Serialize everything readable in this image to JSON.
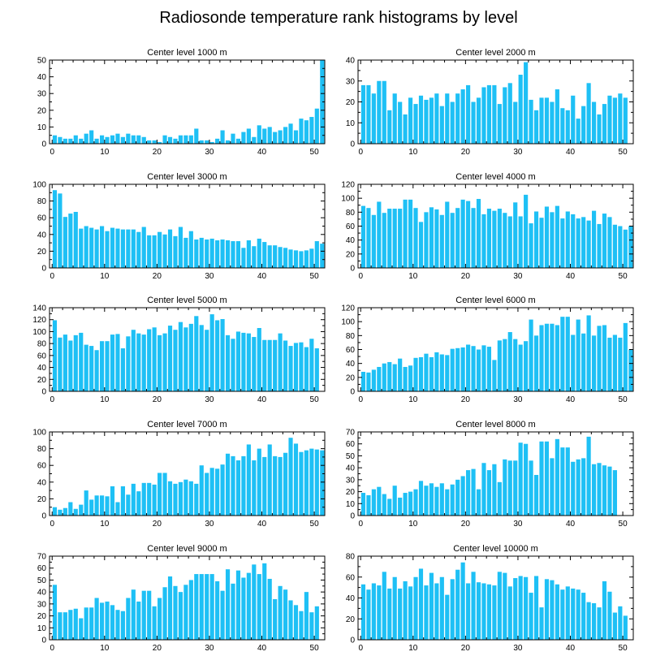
{
  "figure": {
    "title": "Radiosonde temperature rank histograms by level",
    "bar_color": "#1ec0f5"
  },
  "chart_data": [
    {
      "type": "bar",
      "title": "Center level 1000 m",
      "x_ticks": [
        0,
        10,
        20,
        30,
        40,
        50
      ],
      "xlim": [
        -0.5,
        52
      ],
      "y_ticks": [
        0,
        10,
        20,
        30,
        40,
        50
      ],
      "ylim": [
        0,
        50
      ],
      "values": [
        5,
        4,
        3,
        3,
        5,
        3,
        6,
        8,
        3,
        5,
        4,
        5,
        6,
        4,
        6,
        5,
        5,
        4,
        2,
        2,
        1,
        5,
        4,
        3,
        5,
        5,
        5,
        9,
        2,
        2,
        1,
        3,
        8,
        2,
        6,
        3,
        7,
        9,
        4,
        11,
        9,
        10,
        7,
        8,
        10,
        12,
        8,
        15,
        14,
        16,
        21,
        50
      ]
    },
    {
      "type": "bar",
      "title": "Center level 2000 m",
      "x_ticks": [
        0,
        10,
        20,
        30,
        40,
        50
      ],
      "xlim": [
        -0.5,
        52
      ],
      "y_ticks": [
        0,
        10,
        20,
        30,
        40
      ],
      "ylim": [
        0,
        40
      ],
      "values": [
        28,
        28,
        24,
        30,
        30,
        16,
        24,
        20,
        14,
        22,
        19,
        23,
        21,
        22,
        24,
        18,
        24,
        20,
        24,
        26,
        28,
        20,
        22,
        27,
        28,
        28,
        19,
        27,
        29,
        20,
        33,
        39,
        21,
        16,
        22,
        22,
        20,
        26,
        17,
        16,
        23,
        12,
        18,
        29,
        20,
        14,
        19,
        23,
        22,
        24,
        22
      ]
    },
    {
      "type": "bar",
      "title": "Center level 3000 m",
      "x_ticks": [
        0,
        10,
        20,
        30,
        40,
        50
      ],
      "xlim": [
        -0.5,
        52
      ],
      "y_ticks": [
        0,
        20,
        40,
        60,
        80,
        100
      ],
      "ylim": [
        0,
        100
      ],
      "values": [
        93,
        89,
        61,
        65,
        67,
        47,
        50,
        48,
        46,
        50,
        44,
        48,
        47,
        46,
        46,
        46,
        43,
        49,
        39,
        39,
        43,
        40,
        46,
        38,
        49,
        36,
        44,
        34,
        36,
        34,
        35,
        33,
        34,
        33,
        32,
        32,
        24,
        33,
        26,
        35,
        31,
        27,
        27,
        25,
        24,
        22,
        21,
        20,
        21,
        23,
        32,
        29
      ]
    },
    {
      "type": "bar",
      "title": "Center level 4000 m",
      "x_ticks": [
        0,
        10,
        20,
        30,
        40,
        50
      ],
      "xlim": [
        -0.5,
        52
      ],
      "y_ticks": [
        0,
        20,
        40,
        60,
        80,
        100,
        120
      ],
      "ylim": [
        0,
        120
      ],
      "values": [
        89,
        86,
        76,
        95,
        79,
        85,
        85,
        85,
        98,
        98,
        86,
        66,
        80,
        87,
        84,
        76,
        95,
        79,
        86,
        98,
        96,
        86,
        99,
        77,
        85,
        82,
        85,
        79,
        74,
        94,
        74,
        105,
        64,
        81,
        72,
        88,
        80,
        89,
        71,
        81,
        77,
        71,
        73,
        68,
        82,
        63,
        78,
        73,
        62,
        60,
        55,
        60
      ]
    },
    {
      "type": "bar",
      "title": "Center level 5000 m",
      "x_ticks": [
        0,
        10,
        20,
        30,
        40,
        50
      ],
      "xlim": [
        -0.5,
        52
      ],
      "y_ticks": [
        0,
        20,
        40,
        60,
        80,
        100,
        120,
        140
      ],
      "ylim": [
        0,
        140
      ],
      "values": [
        119,
        90,
        95,
        85,
        94,
        98,
        78,
        76,
        69,
        84,
        84,
        95,
        96,
        72,
        92,
        103,
        97,
        95,
        104,
        107,
        94,
        97,
        110,
        103,
        116,
        107,
        113,
        126,
        111,
        103,
        129,
        119,
        121,
        94,
        88,
        100,
        98,
        97,
        91,
        106,
        86,
        86,
        86,
        97,
        85,
        76,
        81,
        82,
        74,
        88,
        72
      ]
    },
    {
      "type": "bar",
      "title": "Center level 6000 m",
      "x_ticks": [
        0,
        10,
        20,
        30,
        40,
        50
      ],
      "xlim": [
        -0.5,
        52
      ],
      "y_ticks": [
        0,
        20,
        40,
        60,
        80,
        100,
        120
      ],
      "ylim": [
        0,
        120
      ],
      "values": [
        28,
        27,
        31,
        35,
        40,
        42,
        39,
        47,
        35,
        37,
        48,
        49,
        54,
        49,
        56,
        53,
        52,
        61,
        62,
        63,
        67,
        65,
        60,
        66,
        64,
        45,
        73,
        75,
        85,
        75,
        67,
        72,
        103,
        80,
        95,
        97,
        97,
        95,
        107,
        107,
        81,
        103,
        83,
        109,
        80,
        94,
        95,
        77,
        81,
        77,
        98,
        60
      ]
    },
    {
      "type": "bar",
      "title": "Center level 7000 m",
      "x_ticks": [
        0,
        10,
        20,
        30,
        40,
        50
      ],
      "xlim": [
        -0.5,
        52
      ],
      "y_ticks": [
        0,
        20,
        40,
        60,
        80,
        100
      ],
      "ylim": [
        0,
        100
      ],
      "values": [
        10,
        7,
        9,
        16,
        8,
        13,
        30,
        19,
        24,
        24,
        23,
        35,
        16,
        35,
        25,
        38,
        29,
        39,
        39,
        37,
        51,
        51,
        41,
        38,
        40,
        43,
        41,
        38,
        60,
        51,
        57,
        56,
        61,
        74,
        71,
        66,
        71,
        85,
        66,
        80,
        70,
        85,
        71,
        70,
        75,
        93,
        86,
        76,
        78,
        80,
        79,
        78
      ]
    },
    {
      "type": "bar",
      "title": "Center level 8000 m",
      "x_ticks": [
        0,
        10,
        20,
        30,
        40,
        50
      ],
      "xlim": [
        -0.5,
        52
      ],
      "y_ticks": [
        0,
        10,
        20,
        30,
        40,
        50,
        60,
        70
      ],
      "ylim": [
        0,
        70
      ],
      "values": [
        19,
        17,
        22,
        24,
        18,
        14,
        25,
        15,
        19,
        20,
        22,
        29,
        25,
        27,
        24,
        27,
        22,
        26,
        30,
        33,
        38,
        39,
        22,
        44,
        38,
        43,
        28,
        47,
        46,
        46,
        61,
        60,
        46,
        34,
        62,
        62,
        48,
        64,
        57,
        57,
        45,
        47,
        48,
        66,
        43,
        44,
        42,
        41,
        38
      ]
    },
    {
      "type": "bar",
      "title": "Center level 9000 m",
      "x_ticks": [
        0,
        10,
        20,
        30,
        40,
        50
      ],
      "xlim": [
        -0.5,
        52
      ],
      "y_ticks": [
        0,
        10,
        20,
        30,
        40,
        50,
        60,
        70
      ],
      "ylim": [
        0,
        70
      ],
      "values": [
        46,
        23,
        23,
        25,
        26,
        18,
        27,
        27,
        35,
        31,
        32,
        29,
        25,
        24,
        35,
        42,
        32,
        41,
        41,
        28,
        35,
        44,
        53,
        45,
        40,
        46,
        50,
        55,
        55,
        55,
        55,
        49,
        41,
        59,
        47,
        58,
        52,
        56,
        63,
        55,
        64,
        51,
        34,
        45,
        42,
        33,
        29,
        24,
        40,
        23,
        28
      ]
    },
    {
      "type": "bar",
      "title": "Center level 10000 m",
      "x_ticks": [
        0,
        10,
        20,
        30,
        40,
        50
      ],
      "xlim": [
        -0.5,
        52
      ],
      "y_ticks": [
        0,
        20,
        40,
        60,
        80
      ],
      "ylim": [
        0,
        80
      ],
      "values": [
        53,
        48,
        54,
        52,
        65,
        49,
        60,
        49,
        56,
        51,
        60,
        68,
        52,
        64,
        54,
        60,
        43,
        58,
        67,
        74,
        54,
        65,
        55,
        54,
        53,
        52,
        65,
        64,
        51,
        59,
        61,
        60,
        45,
        61,
        31,
        58,
        57,
        53,
        48,
        51,
        49,
        48,
        45,
        36,
        35,
        31,
        56,
        46,
        26,
        32,
        23
      ]
    }
  ]
}
